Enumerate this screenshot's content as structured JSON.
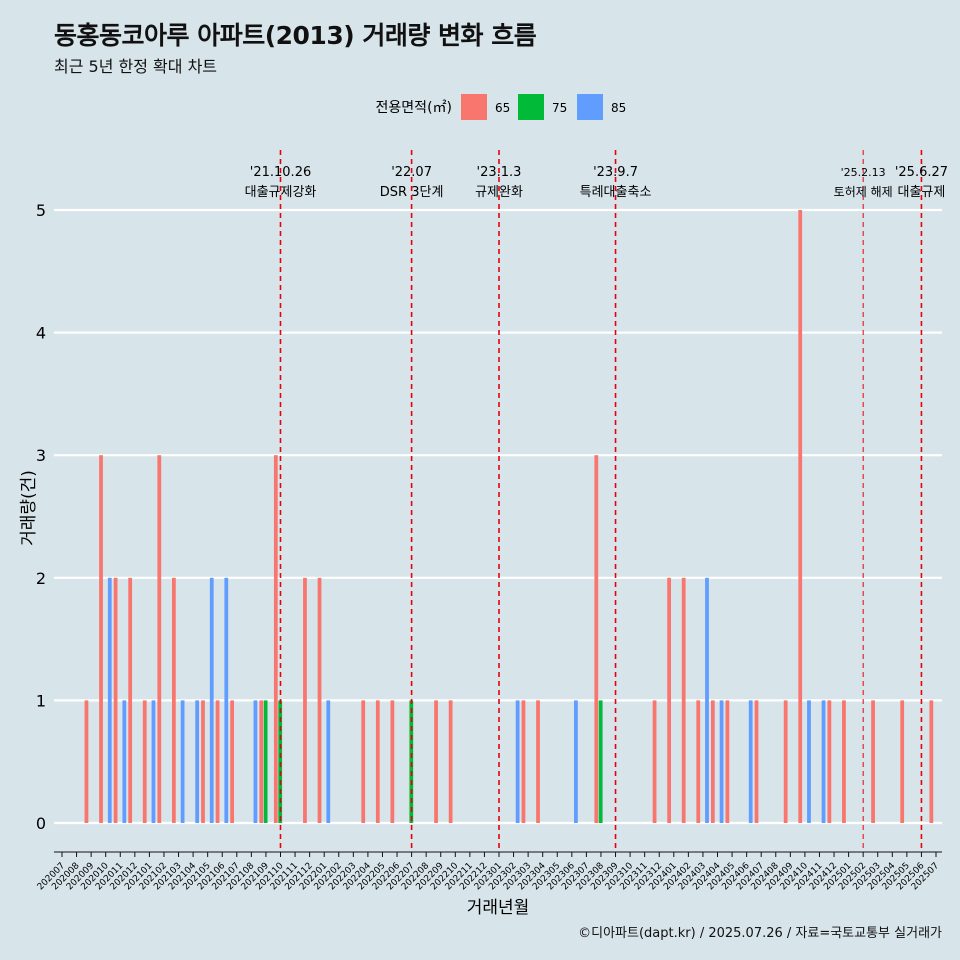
{
  "colors": {
    "background": "#d7e4ea",
    "grid": "#ffffff",
    "event_line": "#e8000b",
    "s65": "#f8766d",
    "s75": "#00ba38",
    "s85": "#619cff"
  },
  "header": {
    "title": "동홍동코아루 아파트(2013) 거래량 변화 흐름",
    "subtitle": "최근 5년 한정 확대 차트"
  },
  "caption": "©디아파트(dapt.kr) / 2025.07.26 / 자료=국토교통부 실거래가",
  "chart_data": {
    "type": "bar",
    "title": "동홍동코아루 아파트(2013) 거래량 변화 흐름",
    "subtitle": "최근 5년 한정 확대 차트",
    "xlabel": "거래년월",
    "ylabel": "거래량(건)",
    "ylim": [
      0,
      5
    ],
    "y_ticks": [
      0,
      1,
      2,
      3,
      4,
      5
    ],
    "grid": true,
    "legend_title": "전용면적(㎡)",
    "legend_position": "top",
    "categories": [
      "202007",
      "202008",
      "202009",
      "202010",
      "202011",
      "202012",
      "202101",
      "202102",
      "202103",
      "202104",
      "202105",
      "202106",
      "202107",
      "202108",
      "202109",
      "202110",
      "202111",
      "202112",
      "202201",
      "202202",
      "202203",
      "202204",
      "202205",
      "202206",
      "202207",
      "202208",
      "202209",
      "202210",
      "202211",
      "202212",
      "202301",
      "202302",
      "202303",
      "202304",
      "202305",
      "202306",
      "202307",
      "202308",
      "202309",
      "202310",
      "202311",
      "202312",
      "202401",
      "202402",
      "202403",
      "202404",
      "202405",
      "202406",
      "202407",
      "202408",
      "202409",
      "202410",
      "202411",
      "202412",
      "202501",
      "202502",
      "202503",
      "202504",
      "202505",
      "202506",
      "202507"
    ],
    "series": [
      {
        "name": "65",
        "color": "#f8766d",
        "values": [
          0,
          0,
          1,
          3,
          2,
          2,
          1,
          3,
          2,
          0,
          1,
          1,
          1,
          0,
          1,
          3,
          0,
          2,
          2,
          0,
          0,
          1,
          1,
          1,
          0,
          0,
          1,
          1,
          0,
          0,
          0,
          0,
          1,
          1,
          0,
          0,
          0,
          3,
          0,
          0,
          0,
          1,
          2,
          2,
          1,
          1,
          1,
          0,
          1,
          0,
          1,
          5,
          0,
          1,
          1,
          0,
          1,
          0,
          1,
          0,
          1
        ]
      },
      {
        "name": "75",
        "color": "#00ba38",
        "values": [
          0,
          0,
          0,
          0,
          0,
          0,
          0,
          0,
          0,
          0,
          0,
          0,
          0,
          0,
          1,
          1,
          0,
          0,
          0,
          0,
          0,
          0,
          0,
          0,
          1,
          0,
          0,
          0,
          0,
          0,
          0,
          0,
          0,
          0,
          0,
          0,
          0,
          1,
          0,
          0,
          0,
          0,
          0,
          0,
          0,
          0,
          0,
          0,
          0,
          0,
          0,
          0,
          0,
          0,
          0,
          0,
          0,
          0,
          0,
          0,
          0
        ]
      },
      {
        "name": "85",
        "color": "#619cff",
        "values": [
          0,
          0,
          0,
          2,
          1,
          0,
          1,
          0,
          1,
          1,
          2,
          2,
          0,
          1,
          0,
          0,
          0,
          0,
          1,
          0,
          0,
          0,
          0,
          0,
          0,
          0,
          0,
          0,
          0,
          0,
          0,
          1,
          0,
          0,
          0,
          1,
          0,
          0,
          0,
          0,
          0,
          0,
          0,
          0,
          2,
          1,
          0,
          1,
          0,
          0,
          0,
          1,
          1,
          0,
          0,
          0,
          0,
          0,
          0,
          0,
          0
        ]
      }
    ],
    "annotations": [
      {
        "month": "202110",
        "date": "'21.10.26",
        "label": "대출규제강화"
      },
      {
        "month": "202207",
        "date": "'22.07",
        "label": "DSR 3단계"
      },
      {
        "month": "202301",
        "date": "'23.1.3",
        "label": "규제완화"
      },
      {
        "month": "202309",
        "date": "'23.9.7",
        "label": "특례대출축소"
      },
      {
        "month": "202502",
        "date": "'25.2.13",
        "label": "토허제 해제"
      },
      {
        "month": "202506",
        "date": "'25.6.27",
        "label": "대출규제"
      }
    ]
  }
}
